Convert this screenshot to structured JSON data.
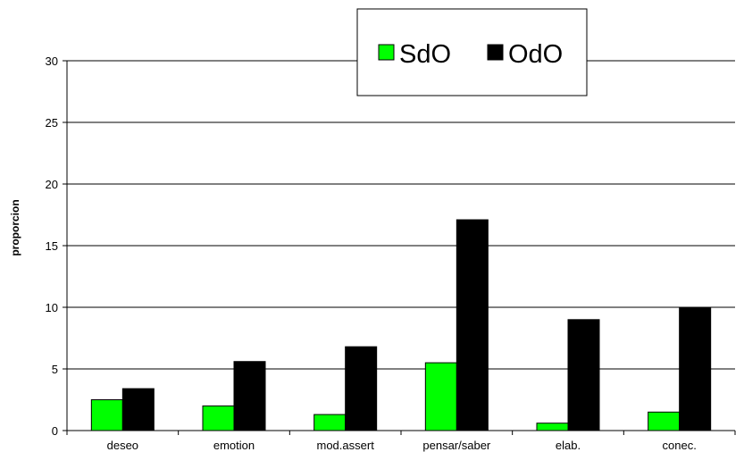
{
  "chart_data": {
    "type": "bar",
    "categories": [
      "deseo",
      "emotion",
      "mod.assert",
      "pensar/saber",
      "elab.",
      "conec."
    ],
    "series": [
      {
        "name": "SdO",
        "color": "#00ff00",
        "values": [
          2.5,
          2.0,
          1.3,
          5.5,
          0.6,
          1.5
        ]
      },
      {
        "name": "OdO",
        "color": "#000000",
        "values": [
          3.4,
          5.6,
          6.8,
          17.1,
          9.0,
          10.0
        ]
      }
    ],
    "xlabel": "",
    "ylabel": "proporcion",
    "ylim": [
      0,
      30
    ],
    "yticks": [
      0,
      5,
      10,
      15,
      20,
      25,
      30
    ],
    "grid": true,
    "legend": "top-center"
  }
}
